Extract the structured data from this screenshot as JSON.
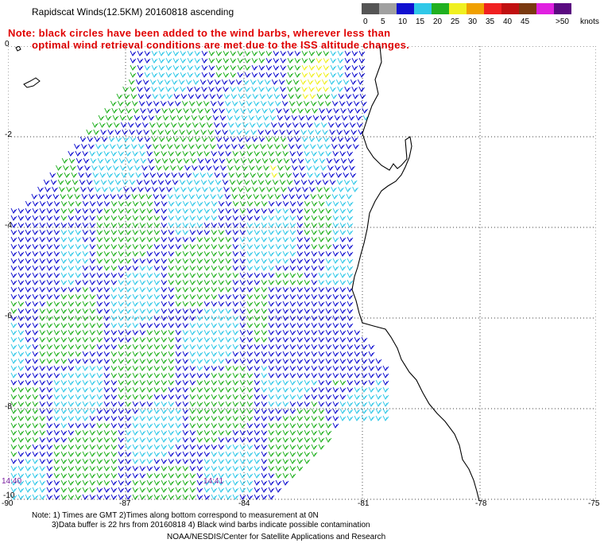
{
  "title": "Rapidscat Winds(12.5KM) 20160818 ascending",
  "note_line1": "Note: black circles have been added to the wind barbs, wherever less than",
  "note_line2": "optimal wind retrieval conditions are met due to the ISS altitude changes.",
  "legend": {
    "unit": "knots",
    "bins": [
      {
        "label": "0",
        "color": "#555555"
      },
      {
        "label": "5",
        "color": "#a0a0a0"
      },
      {
        "label": "10",
        "color": "#1010d0"
      },
      {
        "label": "15",
        "color": "#30c8e8"
      },
      {
        "label": "20",
        "color": "#20b020"
      },
      {
        "label": "25",
        "color": "#f0f020"
      },
      {
        "label": "30",
        "color": "#f0a000"
      },
      {
        "label": "35",
        "color": "#f02020"
      },
      {
        "label": "40",
        "color": "#c01010"
      },
      {
        "label": "45",
        "color": "#7a3a10"
      },
      {
        "label": "",
        "color": "#e020e0"
      },
      {
        "label": ">50",
        "color": "#5a0a80"
      }
    ]
  },
  "axes": {
    "lat_labels": [
      "0",
      "-2",
      "-4",
      "-6",
      "-8",
      "-10"
    ],
    "lon_labels": [
      "-90",
      "-87",
      "-84",
      "-81",
      "-78",
      "-75"
    ]
  },
  "time_labels": [
    "14:40",
    "14:41"
  ],
  "footer": {
    "line1": "Note: 1) Times are GMT 2)Times along bottom correspond to measurement at 0N",
    "line2": "3)Data buffer is 22 hrs from 20160818 4) Black wind barbs indicate possible contamination",
    "line3": "NOAA/NESDIS/Center for Satellite Applications and Research"
  }
}
